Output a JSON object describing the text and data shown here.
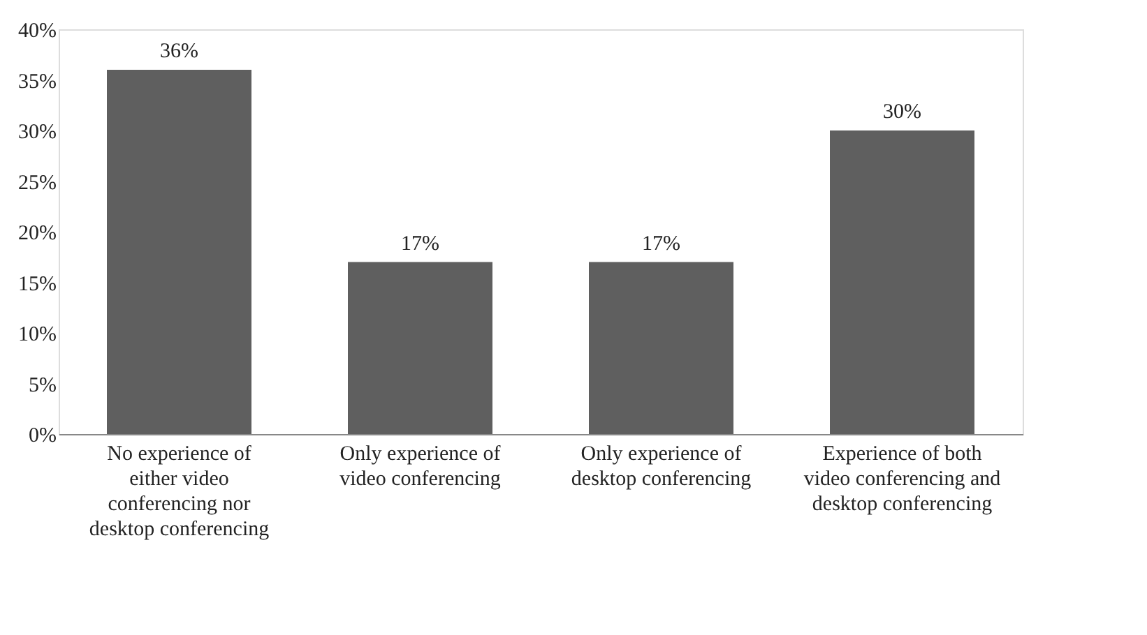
{
  "chart_data": {
    "type": "bar",
    "categories": [
      "No experience of either video conferencing nor desktop conferencing",
      "Only experience of video conferencing",
      "Only experience of desktop conferencing",
      "Experience of both video conferencing and desktop conferencing"
    ],
    "values": [
      36,
      17,
      17,
      30
    ],
    "value_labels": [
      "36%",
      "17%",
      "17%",
      "30%"
    ],
    "color": "#5f5f5f",
    "ylim": [
      0,
      40
    ],
    "yticks": [
      {
        "value": 0,
        "label": "0%"
      },
      {
        "value": 5,
        "label": "5%"
      },
      {
        "value": 10,
        "label": "10%"
      },
      {
        "value": 15,
        "label": "15%"
      },
      {
        "value": 20,
        "label": "20%"
      },
      {
        "value": 25,
        "label": "25%"
      },
      {
        "value": 30,
        "label": "30%"
      },
      {
        "value": 35,
        "label": "35%"
      },
      {
        "value": 40,
        "label": "40%"
      }
    ],
    "grid": false
  }
}
